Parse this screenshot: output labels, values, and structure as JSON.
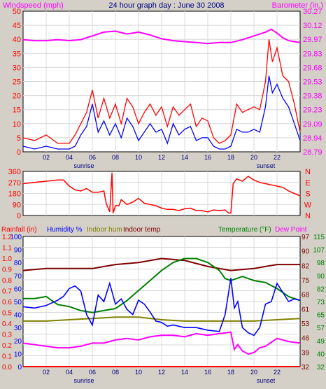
{
  "header": {
    "title": "24 hour graph day : June 30 2008",
    "left_label": "Windspeed (mph)",
    "right_label": "Barometer (in.)"
  },
  "time_axis": {
    "hour_ticks": [
      "02",
      "04",
      "06",
      "08",
      "10",
      "12",
      "14",
      "16",
      "18",
      "20",
      "22"
    ],
    "sunrise_label": "sunrise",
    "sunset_label": "sunset"
  },
  "bottom_legend": {
    "rainfall": "Rainfall (in)",
    "humidity": "Humidity %",
    "indoor_hum": "Indoor hum",
    "indoor_temp": "Indoor temp",
    "temperature": "Temperature (°F)",
    "dew_point": "Dew Point"
  },
  "colors": {
    "wind": "#ff0000",
    "wind_avg": "#0000ff",
    "barometer": "#ff00ff",
    "direction": "#ff0000",
    "rain": "#ff0000",
    "humidity": "#0000ff",
    "indoor_hum": "#808000",
    "indoor_temp": "#800000",
    "temperature": "#008000",
    "dew_point": "#ff00ff"
  },
  "chart_data": [
    {
      "type": "line",
      "x_unit": "hour",
      "xlim": [
        0,
        24
      ],
      "left_axis": {
        "label": "Windspeed (mph)",
        "ylim": [
          0,
          50
        ],
        "ticks": [
          "0",
          "5",
          "10",
          "15",
          "20",
          "25",
          "30",
          "35",
          "40",
          "45",
          "50"
        ]
      },
      "right_axis": {
        "label": "Barometer (in.)",
        "ylim": [
          28.79,
          30.27
        ],
        "ticks": [
          "28.79",
          "28.94",
          "29.09",
          "29.23",
          "29.38",
          "29.53",
          "29.68",
          "29.83",
          "29.97",
          "30.12",
          "30.27"
        ]
      },
      "series": [
        {
          "key": "gust",
          "axis": "left",
          "x": [
            0,
            1,
            2,
            3,
            4,
            4.5,
            5,
            5.5,
            6,
            6.5,
            7,
            7.5,
            8,
            8.5,
            9,
            9.5,
            10,
            10.5,
            11,
            11.5,
            12,
            12.5,
            13,
            13.5,
            14,
            14.5,
            15,
            15.5,
            16,
            16.5,
            17,
            17.5,
            18,
            18.5,
            19,
            19.5,
            20,
            20.5,
            21,
            21.3,
            21.6,
            22,
            22.5,
            23,
            23.5,
            24
          ],
          "values": [
            5,
            4,
            6,
            3,
            3,
            6,
            10,
            14,
            22,
            12,
            19,
            12,
            17,
            10,
            19,
            16,
            10,
            14,
            17,
            13,
            16,
            9,
            16,
            13,
            15,
            17,
            9,
            12,
            11,
            5,
            3,
            4,
            6,
            17,
            14,
            15,
            16,
            15,
            25,
            40,
            32,
            37,
            27,
            25,
            17,
            7
          ]
        },
        {
          "key": "avg",
          "axis": "left",
          "x": [
            0,
            1,
            2,
            3,
            4,
            4.5,
            5,
            5.5,
            6,
            6.5,
            7,
            7.5,
            8,
            8.5,
            9,
            9.5,
            10,
            10.5,
            11,
            11.5,
            12,
            12.5,
            13,
            13.5,
            14,
            14.5,
            15,
            15.5,
            16,
            16.5,
            17,
            17.5,
            18,
            18.5,
            19,
            19.5,
            20,
            20.5,
            21,
            21.3,
            21.6,
            22,
            22.5,
            23,
            23.5,
            24
          ],
          "values": [
            2,
            1,
            2,
            1,
            1,
            2,
            6,
            9,
            17,
            7,
            11,
            6,
            10,
            5,
            12,
            9,
            4,
            7,
            10,
            7,
            8,
            3,
            10,
            6,
            8,
            9,
            4,
            5,
            5,
            2,
            1,
            1,
            2,
            8,
            7,
            7,
            8,
            7,
            16,
            27,
            21,
            24,
            19,
            16,
            10,
            4
          ]
        },
        {
          "key": "barometer",
          "axis": "right",
          "x": [
            0,
            1,
            2,
            3,
            4,
            5,
            6,
            7,
            8,
            9,
            10,
            11,
            12,
            13,
            14,
            15,
            16,
            17,
            18,
            19,
            20,
            21,
            21.5,
            22,
            22.5,
            23,
            23.5,
            24
          ],
          "values": [
            29.97,
            29.96,
            29.96,
            29.97,
            29.96,
            29.97,
            30.01,
            30.05,
            30.06,
            30.03,
            30.05,
            30.02,
            29.98,
            29.96,
            29.95,
            29.94,
            29.93,
            29.94,
            29.94,
            29.97,
            30.01,
            30.05,
            30.08,
            30.04,
            29.99,
            29.96,
            29.95,
            29.94
          ]
        }
      ]
    },
    {
      "type": "line",
      "x_unit": "hour",
      "xlim": [
        0,
        24
      ],
      "left_axis": {
        "ylim": [
          0,
          360
        ],
        "ticks": [
          "0",
          "90",
          "180",
          "270",
          "360"
        ]
      },
      "right_axis": {
        "ticks": [
          "N",
          "W",
          "S",
          "E",
          "N"
        ]
      },
      "series": [
        {
          "key": "direction",
          "axis": "left",
          "x": [
            0,
            1,
            2,
            3,
            3.5,
            4,
            4.5,
            5,
            5.5,
            6,
            6.5,
            7,
            7.2,
            7.5,
            7.7,
            7.8,
            8,
            8.3,
            8.5,
            9,
            9.5,
            10,
            10.5,
            11,
            11.5,
            12,
            12.5,
            13,
            13.5,
            14,
            14.5,
            15,
            15.5,
            16,
            16.5,
            17,
            17.5,
            17.8,
            18,
            18.2,
            18.5,
            19,
            19.5,
            20,
            20.5,
            21,
            21.5,
            22,
            22.5,
            23,
            23.5,
            24
          ],
          "values": [
            260,
            270,
            280,
            290,
            290,
            240,
            210,
            200,
            220,
            190,
            190,
            200,
            100,
            30,
            350,
            20,
            80,
            80,
            130,
            90,
            110,
            140,
            100,
            90,
            80,
            60,
            50,
            50,
            40,
            55,
            60,
            40,
            40,
            30,
            45,
            40,
            45,
            20,
            20,
            260,
            300,
            280,
            320,
            290,
            270,
            260,
            250,
            240,
            230,
            200,
            180,
            160
          ]
        }
      ]
    },
    {
      "type": "line",
      "x_unit": "hour",
      "xlim": [
        0,
        24
      ],
      "axes": {
        "rain": {
          "label": "Rainfall (in)",
          "ylim": [
            0,
            1.2
          ],
          "ticks": [
            "0.0",
            "0.1",
            "0.2",
            "0.3",
            "0.4",
            "0.5",
            "0.6",
            "0.7",
            "0.8",
            "0.9",
            "1.0",
            "1.1",
            "1.2"
          ]
        },
        "humidity": {
          "label": "Humidity %",
          "ylim": [
            0,
            100
          ],
          "ticks": [
            "0",
            "10",
            "20",
            "30",
            "40",
            "50",
            "60",
            "70",
            "80",
            "90",
            "100"
          ]
        },
        "temperature": {
          "label": "Temperature (°F)",
          "ylim": [
            32,
            97
          ],
          "ticks": [
            "32",
            "39",
            "46",
            "53",
            "61",
            "68",
            "75",
            "82",
            "90",
            "97"
          ]
        },
        "dew_point": {
          "label": "Dew Point",
          "ylim": [
            32,
            115
          ],
          "ticks": [
            "32",
            "40",
            "49",
            "57",
            "65",
            "73",
            "82",
            "90",
            "98",
            "107",
            "115"
          ]
        }
      },
      "series": [
        {
          "key": "rain",
          "axis": "rain",
          "x": [
            0,
            24
          ],
          "values": [
            0,
            0
          ]
        },
        {
          "key": "humidity",
          "axis": "humidity",
          "x": [
            0,
            1,
            2,
            3,
            3.5,
            4,
            4.5,
            5,
            5.5,
            6,
            6.5,
            7,
            7.5,
            8,
            8.5,
            9,
            9.5,
            10,
            10.5,
            11,
            11.5,
            12,
            12.5,
            13,
            14,
            15,
            16,
            17,
            17.5,
            18,
            18.3,
            18.6,
            19,
            19.5,
            20,
            20.5,
            21,
            21.5,
            22,
            22.5,
            23,
            23.5,
            24
          ],
          "values": [
            46,
            45,
            47,
            51,
            54,
            60,
            62,
            58,
            40,
            32,
            55,
            50,
            64,
            48,
            52,
            44,
            40,
            51,
            48,
            42,
            35,
            34,
            31,
            32,
            30,
            30,
            28,
            27,
            40,
            68,
            45,
            50,
            30,
            26,
            24,
            30,
            48,
            50,
            64,
            57,
            50,
            52,
            51
          ]
        },
        {
          "key": "indoor_hum",
          "axis": "humidity",
          "x": [
            0,
            2,
            4,
            6,
            8,
            10,
            12,
            14,
            16,
            18,
            20,
            22,
            24
          ],
          "values": [
            35,
            35,
            36,
            37,
            38,
            38,
            36,
            35,
            35,
            35,
            35,
            36,
            37
          ]
        },
        {
          "key": "indoor_temp",
          "axis": "temperature",
          "x": [
            0,
            2,
            4,
            6,
            8,
            10,
            12,
            14,
            16,
            18,
            20,
            21,
            22,
            24
          ],
          "values": [
            80,
            81,
            81,
            81,
            83,
            84,
            86,
            85,
            82,
            80,
            81,
            82,
            83,
            83
          ]
        },
        {
          "key": "temperature",
          "axis": "temperature",
          "x": [
            0,
            1,
            2,
            3,
            4,
            5,
            6,
            7,
            8,
            9,
            10,
            11,
            12,
            13,
            14,
            15,
            16,
            17,
            17.5,
            18,
            18.5,
            19,
            19.5,
            20,
            21,
            22,
            23,
            24
          ],
          "values": [
            66,
            66,
            67,
            63,
            62,
            60,
            59,
            60,
            61,
            65,
            70,
            75,
            80,
            84,
            86,
            86,
            84,
            80,
            76,
            75,
            76,
            77,
            76,
            75,
            74,
            71,
            67,
            65
          ]
        },
        {
          "key": "dew_point",
          "axis": "dew_point",
          "x": [
            0,
            1,
            2,
            3,
            4,
            5,
            6,
            7,
            8,
            9,
            10,
            11,
            12,
            13,
            14,
            15,
            16,
            17,
            18,
            18.3,
            18.6,
            19,
            19.5,
            20,
            20.5,
            21,
            22,
            23,
            24
          ],
          "values": [
            47,
            46,
            45,
            44,
            44,
            45,
            47,
            47,
            49,
            50,
            49,
            51,
            52,
            52,
            51,
            53,
            52,
            53,
            54,
            43,
            46,
            42,
            40,
            41,
            44,
            45,
            50,
            48,
            47
          ]
        }
      ]
    }
  ]
}
